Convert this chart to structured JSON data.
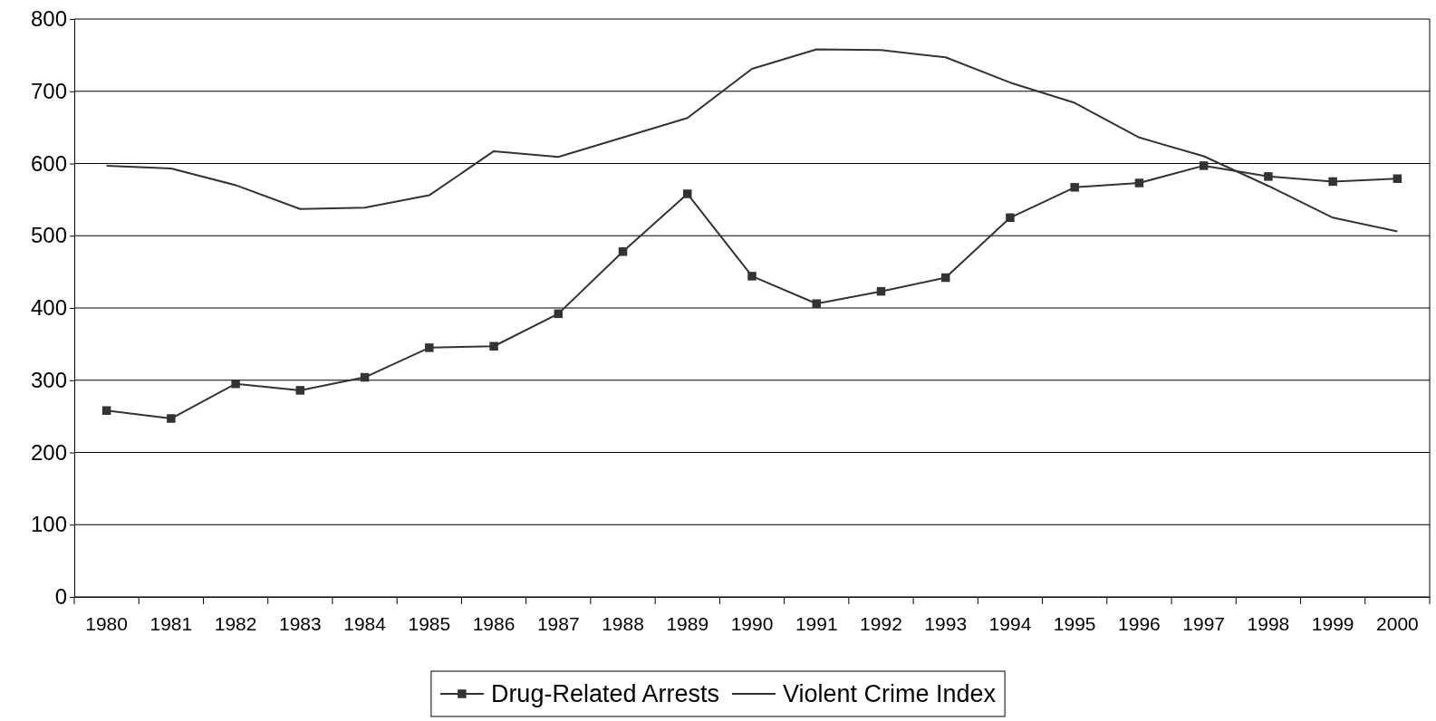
{
  "chart_data": {
    "type": "line",
    "categories": [
      "1980",
      "1981",
      "1982",
      "1983",
      "1984",
      "1985",
      "1986",
      "1987",
      "1988",
      "1989",
      "1990",
      "1991",
      "1992",
      "1993",
      "1994",
      "1995",
      "1996",
      "1997",
      "1998",
      "1999",
      "2000"
    ],
    "series": [
      {
        "name": "Drug-Related Arrests",
        "color": "#333333",
        "marker": "square",
        "values": [
          258,
          247,
          295,
          286,
          304,
          345,
          347,
          392,
          478,
          558,
          444,
          406,
          423,
          442,
          525,
          567,
          573,
          597,
          582,
          575,
          579
        ]
      },
      {
        "name": "Violent Crime Index",
        "color": "#333333",
        "marker": "none",
        "values": [
          597,
          593,
          570,
          537,
          539,
          556,
          617,
          609,
          636,
          663,
          731,
          758,
          757,
          747,
          712,
          684,
          636,
          610,
          569,
          525,
          506
        ]
      }
    ],
    "ylim": [
      0,
      800
    ],
    "yticks": [
      0,
      100,
      200,
      300,
      400,
      500,
      600,
      700,
      800
    ],
    "grid": "y",
    "legend": "bottom"
  }
}
